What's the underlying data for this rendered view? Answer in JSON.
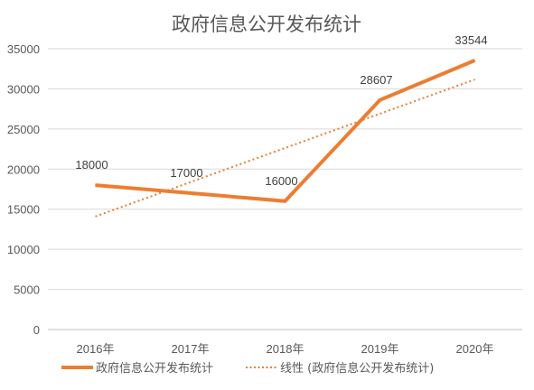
{
  "chart_data": {
    "type": "line",
    "title": "政府信息公开发布统计",
    "xlabel": "",
    "ylabel": "",
    "categories": [
      "2016年",
      "2017年",
      "2018年",
      "2019年",
      "2020年"
    ],
    "ylim": [
      0,
      35000
    ],
    "yticks": [
      "0",
      "5000",
      "10000",
      "15000",
      "20000",
      "25000",
      "30000",
      "35000"
    ],
    "series": [
      {
        "name": "政府信息公开发布统计",
        "values": [
          18000,
          17000,
          16000,
          28607,
          33544
        ],
        "data_labels": [
          "18000",
          "17000",
          "16000",
          "28607",
          "33544"
        ],
        "color": "#ED7D31",
        "style": "solid"
      }
    ],
    "trendline": {
      "name": "线性 (政府信息公开发布统计)",
      "type": "linear",
      "color": "#ED7D31",
      "style": "dotted"
    },
    "grid": true,
    "legend": "bottom"
  }
}
